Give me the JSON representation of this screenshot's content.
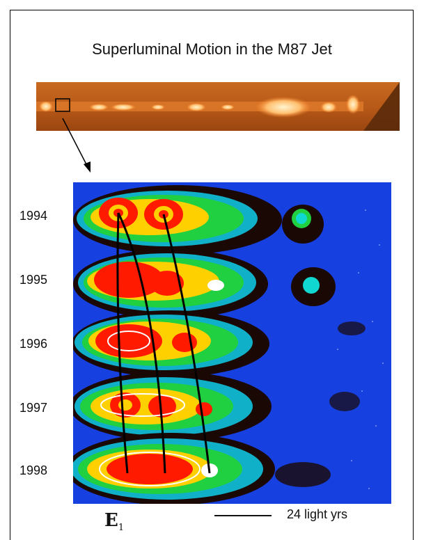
{
  "figure": {
    "title": "Superluminal Motion in the M87 Jet"
  },
  "epochs": [
    {
      "year": "1994"
    },
    {
      "year": "1995"
    },
    {
      "year": "1996"
    },
    {
      "year": "1997"
    },
    {
      "year": "1998"
    }
  ],
  "scale": {
    "label": "24 light yrs"
  },
  "knot": {
    "letter": "E",
    "subscript": "1"
  },
  "colors": {
    "jet_background": "#b85a1a",
    "jet_bright": "#ffe8b0",
    "panel_background": "#1640e0",
    "contour_red": "#ff1a00",
    "contour_yellow": "#ffd000",
    "contour_green": "#20d040",
    "contour_cyan": "#10d8d0",
    "trajectory": "#000000"
  }
}
